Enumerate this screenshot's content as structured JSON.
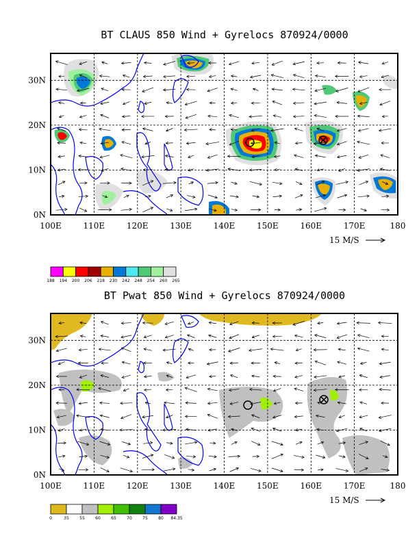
{
  "panel1": {
    "title": "BT CLAUS 850 Wind + Gyrelocs 870924/0000",
    "x_ticks": [
      "100E",
      "110E",
      "120E",
      "130E",
      "140E",
      "150E",
      "160E",
      "170E",
      "180"
    ],
    "y_ticks": [
      "0N",
      "10N",
      "20N",
      "30N"
    ],
    "scale_label": "15 M/S",
    "legend": {
      "labels": [
        "188",
        "194",
        "200",
        "206",
        "218",
        "230",
        "242",
        "248",
        "254",
        "260",
        "265"
      ],
      "colors": [
        "#ff00ff",
        "#ffff00",
        "#ff0000",
        "#a00000",
        "#e8b000",
        "#0078d8",
        "#50e8f0",
        "#50c878",
        "#a0f0a0",
        "#e0e0e0"
      ]
    }
  },
  "panel2": {
    "title": "BT Pwat 850 Wind + Gyrelocs 870924/0000",
    "x_ticks": [
      "100E",
      "110E",
      "120E",
      "130E",
      "140E",
      "150E",
      "160E",
      "170E",
      "180"
    ],
    "y_ticks": [
      "0N",
      "10N",
      "20N",
      "30N"
    ],
    "scale_label": "15 M/S",
    "legend": {
      "labels": [
        "0",
        "35",
        "55",
        "60",
        "65",
        "70",
        "75",
        "80",
        "84.35"
      ],
      "colors": [
        "#e0b820",
        "#ffffff",
        "#c0c0c0",
        "#a0f000",
        "#40c000",
        "#108010",
        "#1078d0",
        "#8000c8"
      ]
    }
  },
  "colors": {
    "coastline": "#0000ff",
    "frame": "#000000",
    "grid": "#000000"
  },
  "chart_data": [
    {
      "type": "map",
      "title": "BT CLAUS 850 Wind + Gyrelocs 870924/0000",
      "lon_range": [
        100,
        180
      ],
      "lat_range": [
        0,
        36
      ],
      "gyre_locations": [
        {
          "symbol": "circle",
          "lon": 144.5,
          "lat": 16.5
        },
        {
          "symbol": "circle-cross",
          "lon": 163.0,
          "lat": 16.5
        }
      ],
      "field": "cloud brightness temperature (K)"
    },
    {
      "type": "map",
      "title": "BT Pwat 850 Wind + Gyrelocs 870924/0000",
      "lon_range": [
        100,
        180
      ],
      "lat_range": [
        0,
        36
      ],
      "gyre_locations": [
        {
          "symbol": "circle",
          "lon": 144.5,
          "lat": 15.0
        },
        {
          "symbol": "circle-cross",
          "lon": 163.0,
          "lat": 16.5
        }
      ],
      "field": "precipitable water (mm)"
    }
  ]
}
